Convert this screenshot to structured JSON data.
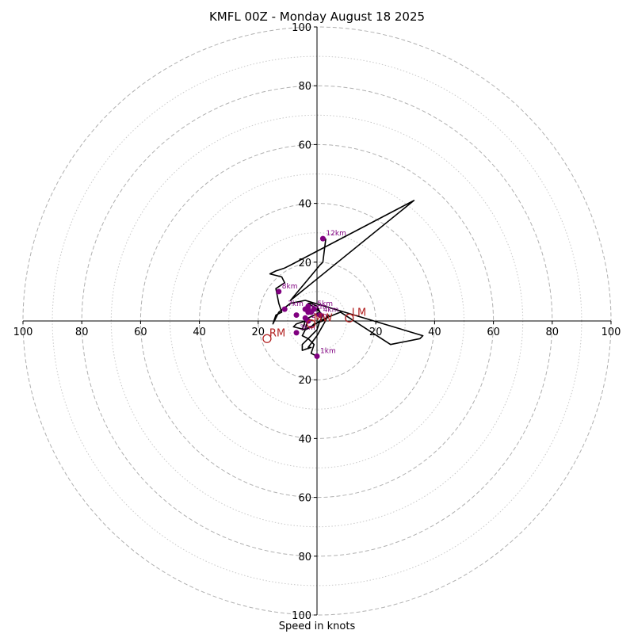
{
  "chart_data": {
    "type": "line",
    "title": "KMFL 00Z - Monday August 18 2025",
    "xlabel": "Speed in knots",
    "ylabel": "",
    "xlim": [
      -100,
      100
    ],
    "ylim": [
      -100,
      100
    ],
    "ring_major": [
      20,
      40,
      60,
      80,
      100
    ],
    "ring_minor": [
      10,
      30,
      50,
      70,
      90
    ],
    "x_tick_labels": [
      "100",
      "80",
      "60",
      "40",
      "20",
      "20",
      "40",
      "60",
      "80",
      "100"
    ],
    "x_tick_values": [
      -100,
      -80,
      -60,
      -40,
      -20,
      20,
      40,
      60,
      80,
      100
    ],
    "y_tick_labels": [
      "100",
      "80",
      "60",
      "40",
      "20",
      "20",
      "40",
      "60",
      "80",
      "100"
    ],
    "y_tick_values": [
      100,
      80,
      60,
      40,
      20,
      -20,
      -40,
      -60,
      -80,
      -100
    ],
    "hodograph": {
      "u": [
        0,
        -2,
        -1,
        -3,
        -5,
        -4,
        -3,
        1,
        0,
        -2,
        -3,
        0,
        2,
        1,
        -2,
        -5,
        -4,
        -7,
        -8,
        -4,
        -2,
        -1,
        2,
        3,
        4,
        0,
        -3,
        -2,
        -5,
        -5,
        -2,
        0,
        1,
        3,
        8,
        25,
        35,
        36,
        -4,
        -9,
        -13,
        -15,
        -14,
        -12,
        -13,
        -14,
        -11,
        -12,
        -16,
        -14,
        -11,
        -9,
        33,
        -9,
        1,
        2,
        3
      ],
      "v": [
        -12,
        -11,
        -8,
        -6,
        -5,
        -3,
        1,
        3,
        5,
        6,
        6,
        4,
        2,
        0,
        -2,
        -3,
        0,
        -1,
        -2,
        -3,
        -2,
        -1,
        0,
        1,
        2,
        -5,
        -9,
        -9,
        -10,
        -8,
        -5,
        -3,
        0,
        1,
        3,
        -8,
        -6,
        -5,
        7,
        6,
        3,
        -1,
        2,
        3,
        6,
        11,
        13,
        15,
        16,
        17,
        18,
        19,
        41,
        7,
        19,
        20,
        28
      ]
    },
    "height_markers": [
      {
        "label": "1km",
        "u": 0,
        "v": -12
      },
      {
        "label": "3km",
        "u": -7,
        "v": -4
      },
      {
        "label": "",
        "u": -7,
        "v": 2
      },
      {
        "label": "",
        "u": -4,
        "v": 1
      },
      {
        "label": "",
        "u": -3,
        "v": 4
      },
      {
        "label": "",
        "u": -2,
        "v": 3
      },
      {
        "label": "",
        "u": -3,
        "v": 3
      },
      {
        "label": "",
        "u": -4,
        "v": 4
      },
      {
        "label": "",
        "u": -3,
        "v": 5
      },
      {
        "label": "6km",
        "u": -3,
        "v": 3
      },
      {
        "label": "5km",
        "u": -1,
        "v": 4
      },
      {
        "label": "4km",
        "u": 1,
        "v": 2
      },
      {
        "label": "2km",
        "u": -3,
        "v": 0
      },
      {
        "label": "7km",
        "u": -11,
        "v": 4
      },
      {
        "label": "8km",
        "u": -13,
        "v": 10
      },
      {
        "label": "12km",
        "u": 2,
        "v": 28
      }
    ],
    "storm_motion": [
      {
        "label": "LM",
        "u": 11,
        "v": 1
      },
      {
        "label": "RM",
        "u": -17,
        "v": -6
      },
      {
        "label": "MW",
        "u": -2,
        "v": -1
      }
    ],
    "colors": {
      "hodograph": "#000000",
      "height_marker": "#800080",
      "storm_motion": "#b22222",
      "ring_major": "#b0b0b0",
      "ring_minor": "#c8c8c8"
    }
  }
}
